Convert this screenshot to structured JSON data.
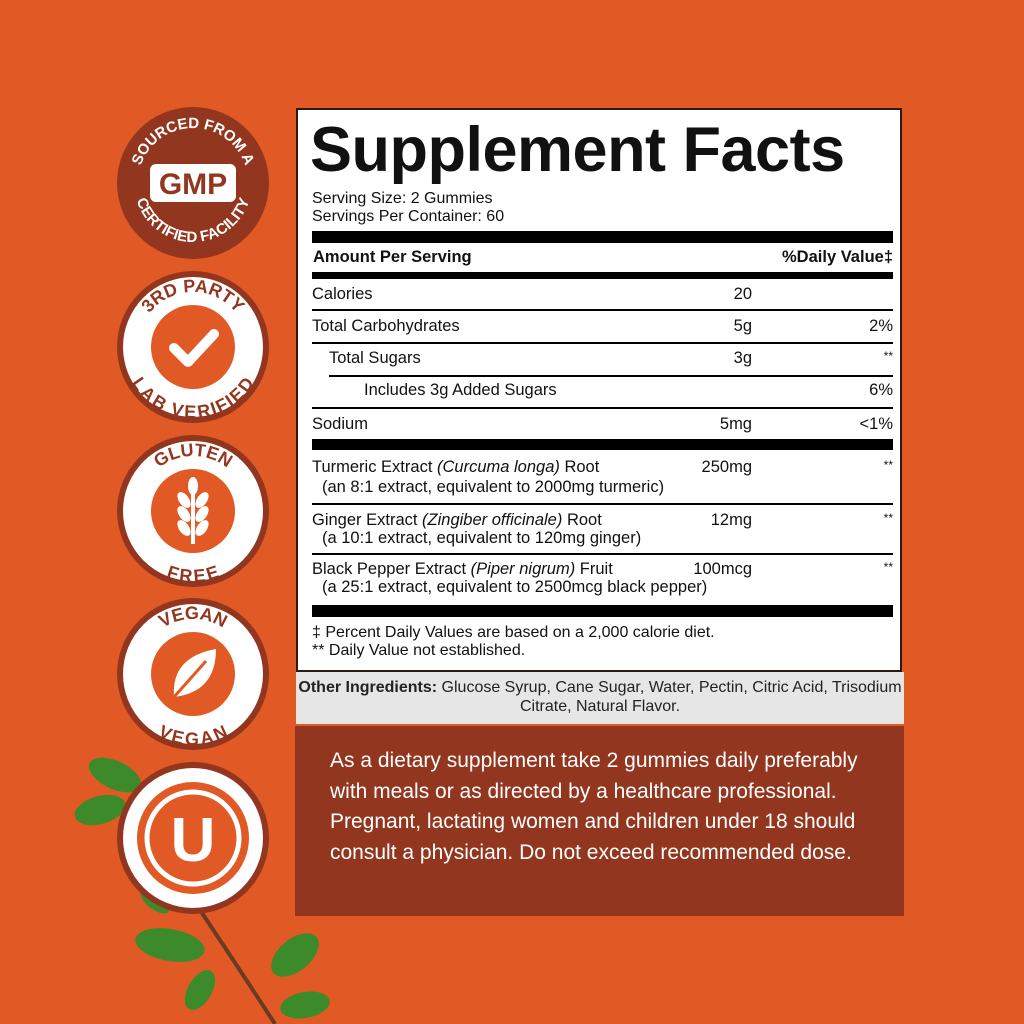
{
  "badges": [
    {
      "top_text": "SOURCED FROM A",
      "center": "GMP",
      "bottom_text": "CERTIFIED FACILITY"
    },
    {
      "top_text": "3RD PARTY",
      "icon": "checkmark-icon",
      "bottom_text": "LAB VERIFIED"
    },
    {
      "top_text": "GLUTEN",
      "icon": "wheat-icon",
      "bottom_text": "FREE"
    },
    {
      "top_text": "VEGAN",
      "icon": "leaf-icon",
      "bottom_text": "VEGAN"
    },
    {
      "icon": "kosher-u-icon",
      "center": "U"
    }
  ],
  "facts": {
    "title": "Supplement Facts",
    "serving_size": "Serving Size: 2 Gummies",
    "servings_per_container": "Servings Per Container: 60",
    "header_amount": "Amount Per Serving",
    "header_dv": "%Daily Value‡",
    "rows": [
      {
        "name": "Calories",
        "amount": "20",
        "dv": ""
      },
      {
        "name": "Total Carbohydrates",
        "amount": "5g",
        "dv": "2%"
      },
      {
        "name": "Total Sugars",
        "amount": "3g",
        "dv": "**"
      },
      {
        "name": "Includes 3g Added Sugars",
        "amount": "",
        "dv": "6%"
      },
      {
        "name": "Sodium",
        "amount": "5mg",
        "dv": "<1%"
      }
    ],
    "extracts": [
      {
        "name": "Turmeric Extract ",
        "latin": "(Curcuma longa)",
        "part": " Root",
        "amount": "250mg",
        "dv": "**",
        "note": "(an 8:1 extract, equivalent to 2000mg turmeric)"
      },
      {
        "name": "Ginger Extract ",
        "latin": "(Zingiber officinale)",
        "part": " Root",
        "amount": "12mg",
        "dv": "**",
        "note": "(a 10:1 extract, equivalent to 120mg ginger)"
      },
      {
        "name": "Black Pepper Extract ",
        "latin": "(Piper nigrum)",
        "part": " Fruit",
        "amount": "100mcg",
        "dv": "**",
        "note": "(a 25:1 extract, equivalent to 2500mcg black pepper)"
      }
    ],
    "footnote1": "‡ Percent Daily Values are based on a 2,000 calorie diet.",
    "footnote2": "** Daily Value not established."
  },
  "other_ingredients": {
    "label": "Other Ingredients:",
    "text": " Glucose Syrup, Cane Sugar, Water, Pectin, Citric Acid, Trisodium Citrate, Natural Flavor."
  },
  "directions": "As a dietary supplement take 2 gummies daily preferably with meals or as directed by a healthcare professional. Pregnant, lactating women and children under 18 should consult a physician. Do not exceed recommended dose.",
  "colors": {
    "background": "#e15a25",
    "brown": "#93361f",
    "panel": "#ffffff",
    "gray": "#e6e6e6"
  }
}
